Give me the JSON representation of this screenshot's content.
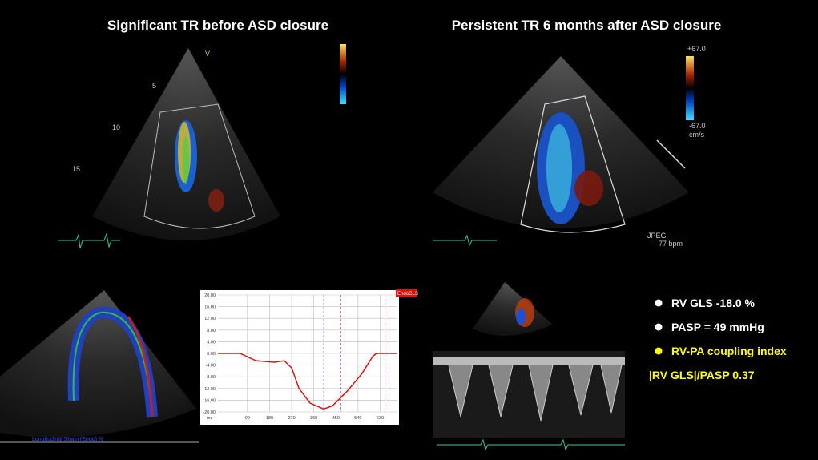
{
  "titles": {
    "left": "Significant TR before ASD closure",
    "right": "Persistent TR  6 months after ASD closure"
  },
  "echo_labels": {
    "depth_5": "5",
    "depth_10": "10",
    "depth_15": "15",
    "view_marker": "V",
    "scale_top": "+67.0",
    "scale_bottom": "-67.0",
    "scale_unit": "cm/s",
    "format": "JPEG",
    "heart_rate": "77 bpm"
  },
  "strain_plot": {
    "badge": "EndoGLS",
    "caption": "Longitudinal Strain (Endo) %",
    "x_unit": "ms",
    "xlim": [
      -30,
      700
    ],
    "ylim": [
      -20,
      20
    ],
    "xticks": [
      90,
      180,
      270,
      360,
      450,
      540,
      630
    ],
    "yticks": [
      {
        "value": 20,
        "label": "20.00"
      },
      {
        "value": 16,
        "label": "16.00"
      },
      {
        "value": 12,
        "label": "12.00"
      },
      {
        "value": 8,
        "label": "8.00"
      },
      {
        "value": 4,
        "label": "4.00"
      },
      {
        "value": 0,
        "label": "0.00"
      },
      {
        "value": -4,
        "label": "-4.00"
      },
      {
        "value": -8,
        "label": "-8.00"
      },
      {
        "value": -12,
        "label": "-12.00"
      },
      {
        "value": -16,
        "label": "-16.00"
      },
      {
        "value": -20,
        "label": "-20.00"
      }
    ],
    "x": [
      -30,
      60,
      125,
      200,
      240,
      270,
      300,
      345,
      400,
      435,
      495,
      555,
      600,
      615,
      700
    ],
    "y": [
      0,
      0,
      -2.5,
      -3,
      -2.5,
      -5,
      -12,
      -17,
      -19,
      -18,
      -13,
      -7,
      -1,
      0,
      0
    ]
  },
  "findings": [
    "RV GLS  -18.0 %",
    "PASP = 49 mmHg",
    "RV-PA coupling index",
    "|RV GLS|/PASP 0.37"
  ]
}
